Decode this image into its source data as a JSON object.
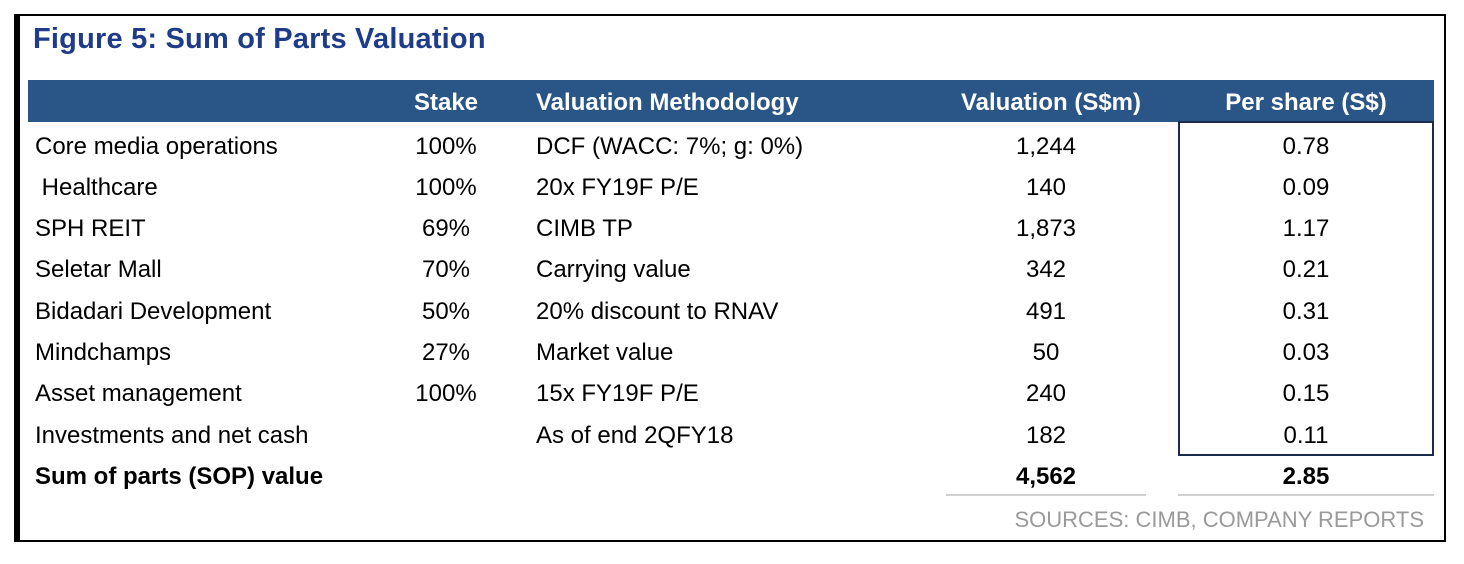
{
  "title": "Figure 5: Sum of Parts Valuation",
  "colors": {
    "header_bg": "#2a5587",
    "title": "#1f3c88",
    "box_border": "#1b2b4e"
  },
  "headers": {
    "label": "",
    "stake": "Stake",
    "method": "Valuation Methodology",
    "valuation": "Valuation (S$m)",
    "per_share": "Per share (S$)"
  },
  "rows": [
    {
      "label": "Core media operations",
      "stake": "100%",
      "method": "DCF (WACC: 7%; g: 0%)",
      "valuation": "1,244",
      "per_share": "0.78"
    },
    {
      "label": " Healthcare",
      "stake": "100%",
      "method": "20x FY19F P/E",
      "valuation": "140",
      "per_share": "0.09"
    },
    {
      "label": "SPH REIT",
      "stake": "69%",
      "method": "CIMB TP",
      "valuation": "1,873",
      "per_share": "1.17"
    },
    {
      "label": "Seletar Mall",
      "stake": "70%",
      "method": "Carrying value",
      "valuation": "342",
      "per_share": "0.21"
    },
    {
      "label": "Bidadari Development",
      "stake": "50%",
      "method": "20% discount to RNAV",
      "valuation": "491",
      "per_share": "0.31"
    },
    {
      "label": "Mindchamps",
      "stake": "27%",
      "method": "Market value",
      "valuation": "50",
      "per_share": "0.03"
    },
    {
      "label": "Asset management",
      "stake": "100%",
      "method": "15x FY19F P/E",
      "valuation": "240",
      "per_share": "0.15"
    },
    {
      "label": "Investments and net cash",
      "stake": "",
      "method": "As of end 2QFY18",
      "valuation": "182",
      "per_share": "0.11"
    }
  ],
  "total": {
    "label": "Sum of parts (SOP) value",
    "valuation": "4,562",
    "per_share": "2.85"
  },
  "sources": "SOURCES: CIMB, COMPANY REPORTS"
}
